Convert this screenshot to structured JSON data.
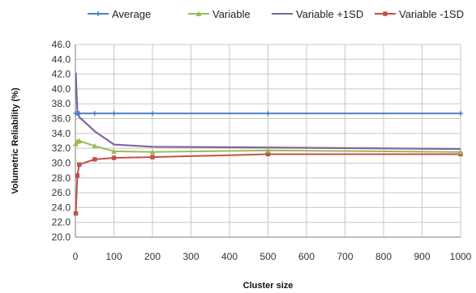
{
  "chart_data": {
    "type": "line",
    "title": "",
    "xlabel": "Cluster size",
    "ylabel": "Volumetric Reliability (%)",
    "xlim": [
      0,
      1000
    ],
    "ylim": [
      20.0,
      46.0
    ],
    "x_ticks": [
      "0",
      "100",
      "200",
      "300",
      "400",
      "500",
      "600",
      "700",
      "800",
      "900",
      "1000"
    ],
    "y_ticks": [
      "20.0",
      "22.0",
      "24.0",
      "26.0",
      "28.0",
      "30.0",
      "32.0",
      "34.0",
      "36.0",
      "38.0",
      "40.0",
      "42.0",
      "44.0",
      "46.0"
    ],
    "grid": true,
    "legend_position": "top",
    "series": [
      {
        "name": "Average",
        "color": "#4f81bd",
        "marker": "plus",
        "x": [
          1,
          5,
          10,
          50,
          100,
          200,
          500,
          1000
        ],
        "y": [
          36.7,
          36.7,
          36.7,
          36.7,
          36.7,
          36.7,
          36.7,
          36.7
        ]
      },
      {
        "name": "Variable",
        "color": "#9bbb59",
        "marker": "triangle",
        "x": [
          1,
          5,
          10,
          50,
          100,
          200,
          500,
          1000
        ],
        "y": [
          32.6,
          32.9,
          33.0,
          32.3,
          31.6,
          31.5,
          31.7,
          31.5
        ]
      },
      {
        "name": "Variable +1SD",
        "color": "#8064a2",
        "marker": "none",
        "x": [
          1,
          5,
          10,
          50,
          100,
          200,
          500,
          1000
        ],
        "y": [
          42.2,
          37.0,
          36.2,
          34.3,
          32.5,
          32.2,
          32.1,
          31.9
        ]
      },
      {
        "name": "Variable -1SD",
        "color": "#c0504d",
        "marker": "square",
        "x": [
          1,
          5,
          10,
          50,
          100,
          200,
          500,
          1000
        ],
        "y": [
          23.2,
          28.3,
          29.8,
          30.5,
          30.7,
          30.8,
          31.2,
          31.2
        ]
      }
    ]
  }
}
